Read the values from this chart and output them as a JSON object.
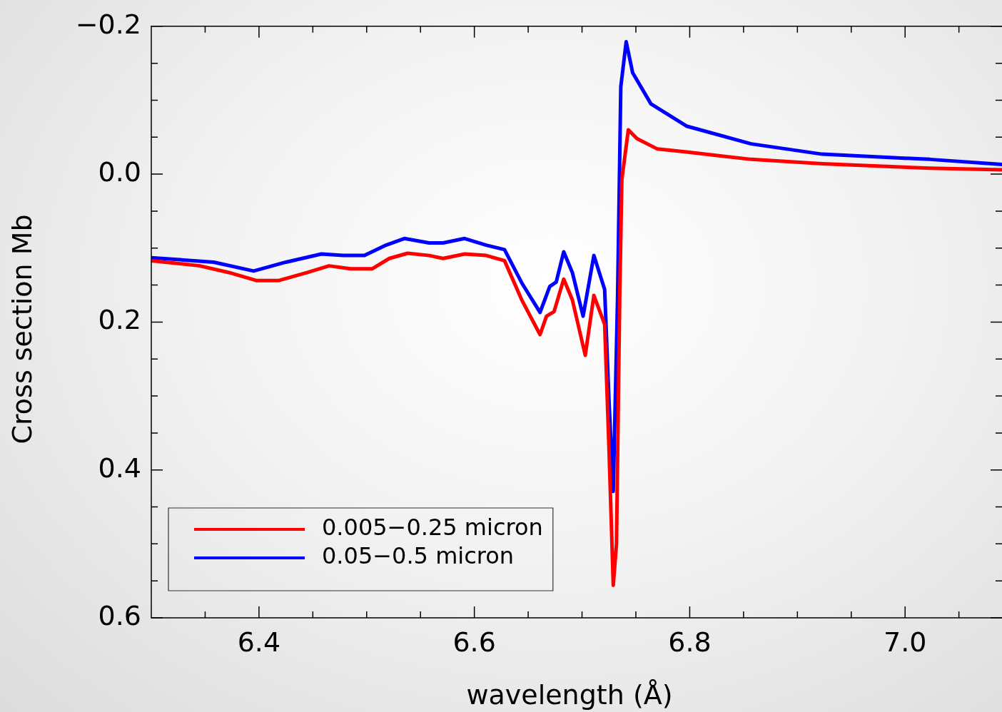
{
  "chart_data": {
    "type": "line",
    "xlabel": "wavelength (Å)",
    "ylabel": "Cross section Mb",
    "legend": "bottom left",
    "marker": "none",
    "line_style": "solid",
    "xlim": [
      6.3,
      7.09
    ],
    "ylim": [
      0.6,
      -0.2
    ],
    "xticks": [
      {
        "value": 6.35,
        "label": null
      },
      {
        "value": 6.4,
        "label": "6.4"
      },
      {
        "value": 6.45,
        "label": null
      },
      {
        "value": 6.5,
        "label": null
      },
      {
        "value": 6.55,
        "label": null
      },
      {
        "value": 6.6,
        "label": "6.6"
      },
      {
        "value": 6.65,
        "label": null
      },
      {
        "value": 6.7,
        "label": null
      },
      {
        "value": 6.75,
        "label": null
      },
      {
        "value": 6.8,
        "label": "6.8"
      },
      {
        "value": 6.85,
        "label": null
      },
      {
        "value": 6.9,
        "label": null
      },
      {
        "value": 6.95,
        "label": null
      },
      {
        "value": 7.0,
        "label": "7.0"
      },
      {
        "value": 7.05,
        "label": null
      }
    ],
    "yticks": [
      {
        "value": -0.2,
        "label": "−0.2"
      },
      {
        "value": -0.15,
        "label": null
      },
      {
        "value": -0.1,
        "label": null
      },
      {
        "value": -0.05,
        "label": null
      },
      {
        "value": 0,
        "label": "0.0"
      },
      {
        "value": 0.05,
        "label": null
      },
      {
        "value": 0.1,
        "label": null
      },
      {
        "value": 0.15,
        "label": null
      },
      {
        "value": 0.2,
        "label": "0.2"
      },
      {
        "value": 0.25,
        "label": null
      },
      {
        "value": 0.3,
        "label": null
      },
      {
        "value": 0.35,
        "label": null
      },
      {
        "value": 0.4,
        "label": "0.4"
      },
      {
        "value": 0.45,
        "label": null
      },
      {
        "value": 0.5,
        "label": null
      },
      {
        "value": 0.55,
        "label": null
      },
      {
        "value": 0.6,
        "label": "0.6"
      }
    ],
    "series": [
      {
        "name": "0.005−0.25 micron",
        "color": "#ff0000",
        "x": [
          6.3,
          6.345,
          6.372,
          6.398,
          6.418,
          6.445,
          6.465,
          6.485,
          6.505,
          6.521,
          6.538,
          6.558,
          6.571,
          6.591,
          6.611,
          6.628,
          6.644,
          6.661,
          6.667,
          6.674,
          6.683,
          6.691,
          6.703,
          6.711,
          6.721,
          6.725,
          6.729,
          6.732,
          6.735,
          6.737,
          6.743,
          6.751,
          6.77,
          6.797,
          6.857,
          6.923,
          7.023,
          7.09
        ],
        "values": [
          0.117,
          0.124,
          0.133,
          0.144,
          0.144,
          0.133,
          0.124,
          0.128,
          0.128,
          0.114,
          0.107,
          0.11,
          0.114,
          0.108,
          0.11,
          0.117,
          0.17,
          0.217,
          0.192,
          0.186,
          0.142,
          0.17,
          0.245,
          0.164,
          0.203,
          0.37,
          0.556,
          0.5,
          0.166,
          0.007,
          -0.06,
          -0.048,
          -0.034,
          -0.03,
          -0.02,
          -0.014,
          -0.008,
          -0.006
        ]
      },
      {
        "name": "0.05−0.5 micron",
        "color": "#0000ff",
        "x": [
          6.3,
          6.358,
          6.395,
          6.425,
          6.458,
          6.478,
          6.498,
          6.518,
          6.535,
          6.558,
          6.571,
          6.591,
          6.611,
          6.628,
          6.644,
          6.661,
          6.67,
          6.676,
          6.683,
          6.691,
          6.701,
          6.711,
          6.721,
          6.725,
          6.729,
          6.733,
          6.736,
          6.741,
          6.747,
          6.764,
          6.797,
          6.857,
          6.923,
          7.023,
          7.09
        ],
        "values": [
          0.113,
          0.119,
          0.131,
          0.119,
          0.108,
          0.11,
          0.11,
          0.096,
          0.087,
          0.093,
          0.093,
          0.087,
          0.096,
          0.102,
          0.147,
          0.187,
          0.152,
          0.146,
          0.105,
          0.133,
          0.192,
          0.11,
          0.156,
          0.305,
          0.429,
          0.166,
          -0.118,
          -0.179,
          -0.137,
          -0.095,
          -0.065,
          -0.041,
          -0.027,
          -0.02,
          -0.013
        ]
      }
    ]
  }
}
